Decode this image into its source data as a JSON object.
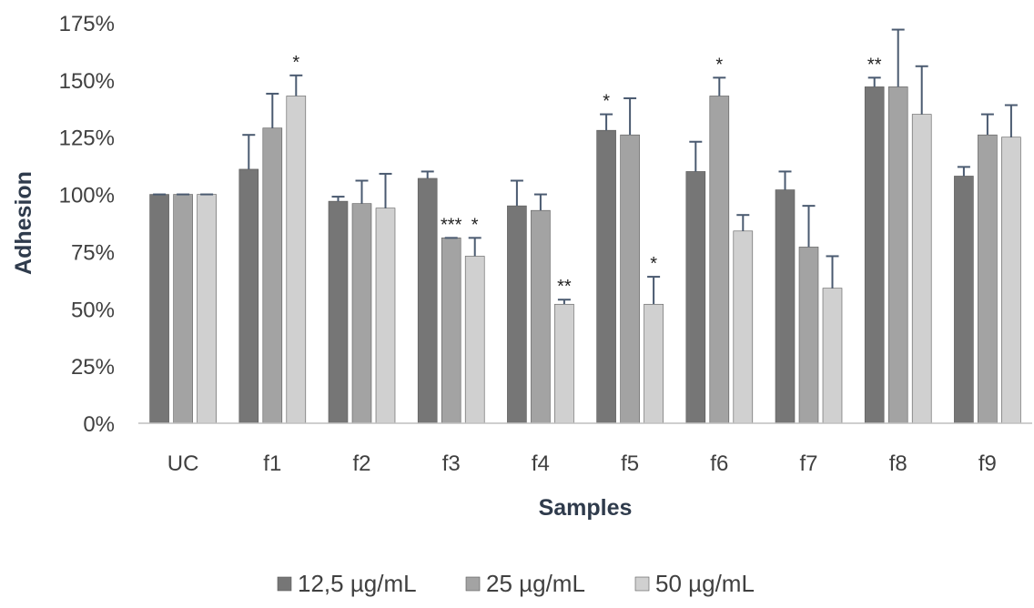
{
  "chart_data": {
    "type": "bar",
    "title": "",
    "xlabel": "Samples",
    "ylabel": "Adhesion",
    "categories": [
      "UC",
      "f1",
      "f2",
      "f3",
      "f4",
      "f5",
      "f6",
      "f7",
      "f8",
      "f9"
    ],
    "y_ticks": [
      "0%",
      "25%",
      "50%",
      "75%",
      "100%",
      "125%",
      "150%",
      "175%"
    ],
    "ylim": [
      0,
      175
    ],
    "grid": false,
    "legend_position": "bottom",
    "series": [
      {
        "name": "12,5 µg/mL",
        "color": "#767676",
        "values": [
          100,
          111,
          97,
          107,
          95,
          128,
          110,
          102,
          147,
          108
        ],
        "errors": [
          0,
          15,
          2,
          3,
          11,
          7,
          13,
          8,
          4,
          4
        ],
        "annotations": [
          "",
          "",
          "",
          "",
          "",
          "*",
          "",
          "",
          "**",
          ""
        ]
      },
      {
        "name": "25 µg/mL",
        "color": "#a3a3a3",
        "values": [
          100,
          129,
          96,
          81,
          93,
          126,
          143,
          77,
          147,
          126
        ],
        "errors": [
          0,
          15,
          10,
          0,
          7,
          16,
          8,
          18,
          25,
          9
        ],
        "annotations": [
          "",
          "",
          "",
          "***",
          "",
          "",
          "*",
          "",
          "",
          ""
        ]
      },
      {
        "name": "50 µg/mL",
        "color": "#d0d0d0",
        "values": [
          100,
          143,
          94,
          73,
          52,
          52,
          84,
          59,
          135,
          125
        ],
        "errors": [
          0,
          9,
          15,
          8,
          2,
          12,
          7,
          14,
          21,
          14
        ],
        "annotations": [
          "",
          "*",
          "",
          "*",
          "**",
          "*",
          "",
          "",
          "",
          ""
        ]
      }
    ],
    "error_bar_color": "#4a5a70"
  }
}
